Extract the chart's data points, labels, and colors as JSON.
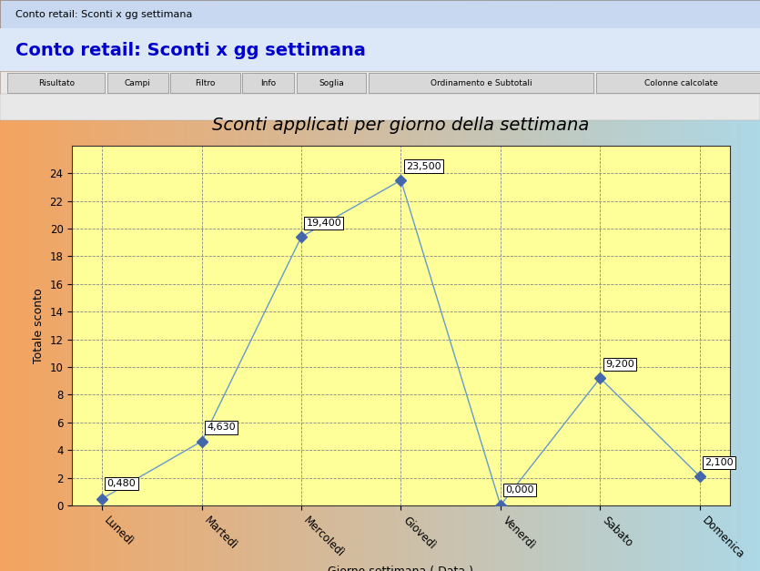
{
  "title": "Sconti applicati per giorno della settimana",
  "xlabel": "Giorno settimana ( Data )",
  "ylabel": "Totale sconto",
  "categories": [
    "Lunedì",
    "Martedì",
    "Mercoledì",
    "Giovedì",
    "Venerdì",
    "Sabato",
    "Domenica"
  ],
  "values": [
    0.48,
    4.63,
    19.4,
    23.5,
    0.0,
    9.2,
    2.1
  ],
  "labels": [
    "0,480",
    "4,630",
    "19,400",
    "23,500",
    "0,000",
    "9,200",
    "2,100"
  ],
  "ylim": [
    0,
    26
  ],
  "yticks": [
    0,
    2,
    4,
    6,
    8,
    10,
    12,
    14,
    16,
    18,
    20,
    22,
    24
  ],
  "line_color": "#6699cc",
  "marker_color": "#4466aa",
  "marker_size": 6,
  "plot_bg_color": "#ffff99",
  "outer_bg_color_left": "#f4a460",
  "outer_bg_color_right": "#add8e6",
  "window_title": "Conto retail: Sconti x gg settimana",
  "header_title": "Conto retail: Sconti x gg settimana",
  "title_fontsize": 14,
  "label_fontsize": 9,
  "tick_fontsize": 8.5,
  "annotation_fontsize": 8
}
